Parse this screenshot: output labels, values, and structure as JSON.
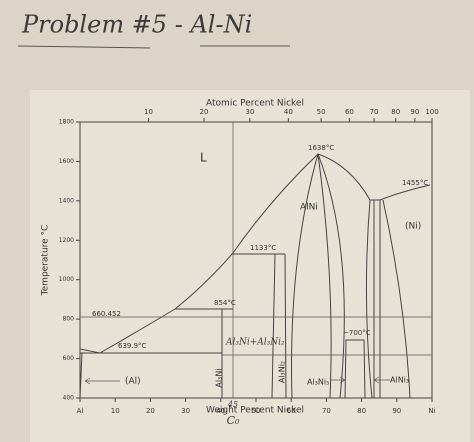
{
  "title": "Problem #5 - Al-Ni",
  "top_axis": {
    "label": "Atomic Percent Nickel",
    "ticks": [
      10,
      20,
      30,
      40,
      50,
      60,
      70,
      80,
      90,
      100
    ]
  },
  "bottom_axis": {
    "label": "Weight Percent Nickel",
    "ticks": [
      {
        "value": 0,
        "label": "Al"
      },
      10,
      20,
      30,
      40,
      50,
      60,
      70,
      80,
      90,
      {
        "value": 100,
        "label": "Ni"
      }
    ]
  },
  "left_axis": {
    "label": "Temperature °C",
    "ticks": [
      400,
      600,
      800,
      1000,
      1200,
      1400,
      1600,
      1800
    ]
  },
  "regions": [
    "L",
    "AlNi",
    "(Ni)",
    "(Al)",
    "Al₃Ni",
    "Al₃Ni₂",
    "Al₃Ni₅",
    "AlNi₃",
    "Al₃Ni+Al₃Ni₂"
  ],
  "annotations": [
    "1638°C",
    "1455°C",
    "1133°C",
    "854°C",
    "660.452",
    "639.9°C",
    "~700°C"
  ],
  "composition": {
    "value": "45",
    "label": "C₀"
  }
}
